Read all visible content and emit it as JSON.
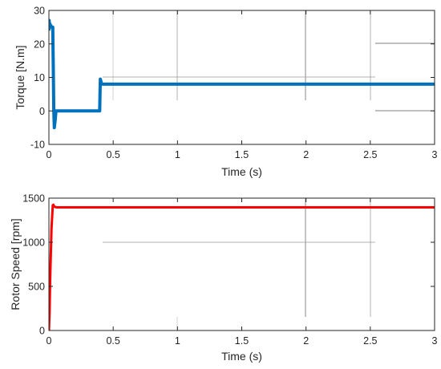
{
  "chart_data": [
    {
      "type": "line",
      "xlabel": "Time (s)",
      "ylabel": "Torque [N.m]",
      "xlim": [
        0,
        3
      ],
      "ylim": [
        -10,
        30
      ],
      "xticks": [
        "0",
        "0.5",
        "1",
        "1.5",
        "2",
        "2.5",
        "3"
      ],
      "yticks": [
        "-10",
        "0",
        "10",
        "20",
        "30"
      ],
      "grid": false,
      "series": [
        {
          "color": "#0072bd",
          "x": [
            0,
            0.002,
            0.005,
            0.008,
            0.012,
            0.015,
            0.02,
            0.03,
            0.035,
            0.038,
            0.042,
            0.048,
            0.055,
            0.07,
            0.1,
            0.2,
            0.3,
            0.395,
            0.398,
            0.4,
            0.41,
            0.45,
            0.6,
            1.0,
            1.5,
            2.0,
            2.5,
            3.0
          ],
          "y": [
            24,
            27,
            25,
            26,
            25,
            25.5,
            25,
            25,
            10,
            0,
            -5,
            -3,
            0,
            0,
            0,
            0,
            0,
            0,
            6,
            9.5,
            8,
            8,
            8,
            8,
            8,
            8,
            8,
            8
          ]
        }
      ]
    },
    {
      "type": "line",
      "xlabel": "Time (s)",
      "ylabel": "Rotor Speed [rpm]",
      "xlim": [
        0,
        3
      ],
      "ylim": [
        0,
        1500
      ],
      "xticks": [
        "0",
        "0.5",
        "1",
        "1.5",
        "2",
        "2.5",
        "3"
      ],
      "yticks": [
        "0",
        "500",
        "1000",
        "1500"
      ],
      "grid": false,
      "series": [
        {
          "color": "#ff0000",
          "x": [
            0,
            0.005,
            0.01,
            0.02,
            0.03,
            0.035,
            0.04,
            0.06,
            0.1,
            0.5,
            1.0,
            1.5,
            2.0,
            2.5,
            3.0
          ],
          "y": [
            0,
            200,
            600,
            1150,
            1420,
            1425,
            1405,
            1395,
            1395,
            1395,
            1395,
            1395,
            1395,
            1395,
            1395
          ]
        }
      ]
    }
  ]
}
